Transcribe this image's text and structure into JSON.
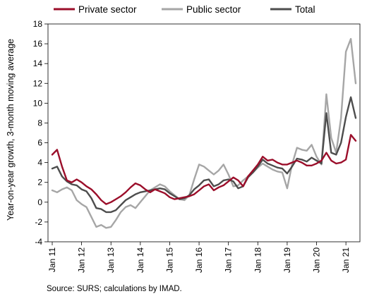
{
  "chart_data": {
    "type": "line",
    "title": "",
    "xlabel": "",
    "ylabel": "Year-on-year growth, 3-month moving average",
    "ylim": [
      -4,
      18
    ],
    "yticks": [
      -4,
      -2,
      0,
      2,
      4,
      6,
      8,
      10,
      12,
      14,
      16,
      18
    ],
    "xlim": [
      "2011-01",
      "2021-05"
    ],
    "xticks": [
      "Jan 11",
      "Jan 12",
      "Jan 13",
      "Jan 14",
      "Jan 15",
      "Jan 16",
      "Jan 17",
      "Jan 18",
      "Jan 19",
      "Jan 20",
      "Jan 21"
    ],
    "grid": false,
    "legend": "top",
    "colors": {
      "Private sector": "#9b0e2a",
      "Public sector": "#a6a6a6",
      "Total": "#4d4d4d"
    },
    "x": [
      "2011-01",
      "2011-03",
      "2011-05",
      "2011-07",
      "2011-09",
      "2011-11",
      "2012-01",
      "2012-03",
      "2012-05",
      "2012-07",
      "2012-09",
      "2012-11",
      "2013-01",
      "2013-03",
      "2013-05",
      "2013-07",
      "2013-09",
      "2013-11",
      "2014-01",
      "2014-03",
      "2014-05",
      "2014-07",
      "2014-09",
      "2014-11",
      "2015-01",
      "2015-03",
      "2015-05",
      "2015-07",
      "2015-09",
      "2015-11",
      "2016-01",
      "2016-03",
      "2016-05",
      "2016-07",
      "2016-09",
      "2016-11",
      "2017-01",
      "2017-03",
      "2017-05",
      "2017-07",
      "2017-09",
      "2017-11",
      "2018-01",
      "2018-03",
      "2018-05",
      "2018-07",
      "2018-09",
      "2018-11",
      "2019-01",
      "2019-03",
      "2019-05",
      "2019-07",
      "2019-09",
      "2019-11",
      "2020-01",
      "2020-03",
      "2020-05",
      "2020-07",
      "2020-09",
      "2020-11",
      "2021-01",
      "2021-03",
      "2021-05"
    ],
    "series": [
      {
        "name": "Private sector",
        "values": [
          4.8,
          5.3,
          3.6,
          2.2,
          2.0,
          2.3,
          2.0,
          1.6,
          1.3,
          0.8,
          0.2,
          -0.2,
          0.0,
          0.3,
          0.6,
          1.0,
          1.5,
          1.9,
          1.7,
          1.3,
          1.0,
          1.3,
          1.1,
          0.9,
          0.5,
          0.3,
          0.4,
          0.5,
          0.6,
          0.8,
          1.2,
          1.6,
          1.8,
          1.2,
          1.5,
          1.7,
          2.1,
          2.5,
          2.2,
          1.6,
          2.6,
          3.2,
          3.8,
          4.6,
          4.2,
          4.3,
          4.0,
          3.8,
          3.8,
          4.0,
          4.2,
          4.0,
          3.7,
          3.7,
          3.9,
          4.2,
          5.0,
          4.2,
          3.9,
          4.0,
          4.3,
          6.8,
          6.2
        ]
      },
      {
        "name": "Public sector",
        "values": [
          1.2,
          1.0,
          1.3,
          1.5,
          1.2,
          0.2,
          -0.2,
          -0.5,
          -1.5,
          -2.5,
          -2.3,
          -2.6,
          -2.5,
          -1.8,
          -1.0,
          -0.5,
          -0.3,
          -0.6,
          0.0,
          0.6,
          1.2,
          1.5,
          1.8,
          1.6,
          1.1,
          0.7,
          0.3,
          0.2,
          0.7,
          2.3,
          3.8,
          3.6,
          3.2,
          2.8,
          3.2,
          3.8,
          2.8,
          1.6,
          1.7,
          2.2,
          2.6,
          3.0,
          3.5,
          3.9,
          3.6,
          3.3,
          3.1,
          3.0,
          1.4,
          3.8,
          5.5,
          5.3,
          5.2,
          5.8,
          4.6,
          3.8,
          10.9,
          6.5,
          5.0,
          8.5,
          15.2,
          16.5,
          12.0
        ]
      },
      {
        "name": "Total",
        "values": [
          3.4,
          3.6,
          2.6,
          2.1,
          1.8,
          1.7,
          1.3,
          1.1,
          0.4,
          -0.6,
          -0.7,
          -1.0,
          -1.0,
          -0.8,
          -0.3,
          0.2,
          0.5,
          0.8,
          1.0,
          1.1,
          1.2,
          1.3,
          1.4,
          1.3,
          0.9,
          0.6,
          0.3,
          0.4,
          0.7,
          1.3,
          1.7,
          2.2,
          2.3,
          1.6,
          1.8,
          2.2,
          2.3,
          2.1,
          1.4,
          1.6,
          2.5,
          3.0,
          3.6,
          4.3,
          3.9,
          3.7,
          3.5,
          3.4,
          2.9,
          3.6,
          4.4,
          4.3,
          4.1,
          4.5,
          4.2,
          3.9,
          9.0,
          5.0,
          4.8,
          6.0,
          8.6,
          10.6,
          8.5
        ]
      }
    ]
  },
  "source_note": "Source: SURS; calculations by IMAD."
}
